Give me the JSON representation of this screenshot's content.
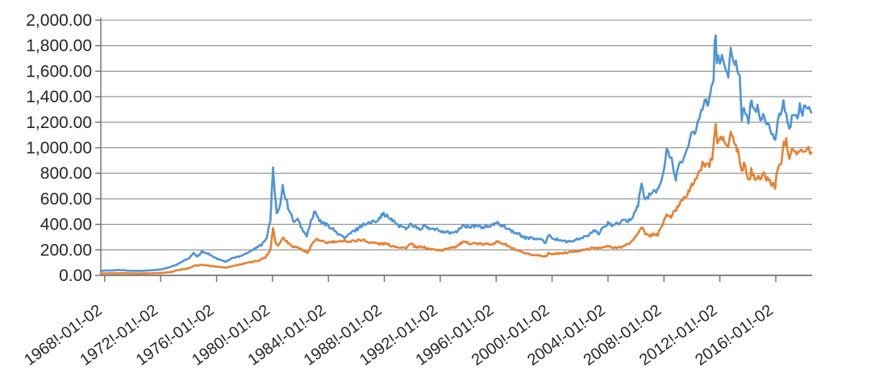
{
  "chart_data": {
    "type": "line",
    "title": "",
    "legend": "none",
    "grid": true,
    "x_axis": {
      "range": [
        1967.72,
        2018.6
      ],
      "tick_years": [
        1968,
        1972,
        1976,
        1980,
        1984,
        1988,
        1992,
        1996,
        2000,
        2004,
        2008,
        2012,
        2016
      ],
      "tick_labels": [
        "1968!-01!-02",
        "1972!-01!-02",
        "1976!-01!-02",
        "1980!-01!-02",
        "1984!-01!-02",
        "1988!-01!-02",
        "1992!-01!-02",
        "1996!-01!-02",
        "2000!-01!-02",
        "2004!-01!-02",
        "2008!-01!-02",
        "2012!-01!-02",
        "2016!-01!-02"
      ]
    },
    "y_axis": {
      "range": [
        0,
        2000
      ],
      "tick_values": [
        0,
        200,
        400,
        600,
        800,
        1000,
        1200,
        1400,
        1600,
        1800,
        2000
      ],
      "tick_labels": [
        "0.00",
        "200.00",
        "400.00",
        "600.00",
        "800.00",
        "1,000.00",
        "1,200.00",
        "1,400.00",
        "1,600.00",
        "1,800.00",
        "2,000.00"
      ]
    },
    "colors": {
      "grid": "#8a8a8a",
      "axis": "#6e6e6e",
      "text": "#262626",
      "background": "#ffffff"
    },
    "series": [
      {
        "name": "series-1-blue",
        "color": "#4E94D8",
        "points": [
          [
            1967.72,
            35
          ],
          [
            1968.4,
            39
          ],
          [
            1969.1,
            42
          ],
          [
            1969.8,
            36
          ],
          [
            1970.6,
            36
          ],
          [
            1971.4,
            40
          ],
          [
            1972,
            46
          ],
          [
            1972.6,
            62
          ],
          [
            1973.2,
            85
          ],
          [
            1973.7,
            120
          ],
          [
            1974,
            130
          ],
          [
            1974.35,
            172
          ],
          [
            1974.65,
            148
          ],
          [
            1974.95,
            186
          ],
          [
            1975.5,
            166
          ],
          [
            1976,
            132
          ],
          [
            1976.65,
            106
          ],
          [
            1977.1,
            135
          ],
          [
            1977.6,
            148
          ],
          [
            1978.2,
            178
          ],
          [
            1978.8,
            212
          ],
          [
            1979.2,
            240
          ],
          [
            1979.6,
            300
          ],
          [
            1979.85,
            430
          ],
          [
            1980.04,
            850
          ],
          [
            1980.16,
            630
          ],
          [
            1980.3,
            490
          ],
          [
            1980.55,
            560
          ],
          [
            1980.73,
            700
          ],
          [
            1980.95,
            610
          ],
          [
            1981.2,
            505
          ],
          [
            1981.55,
            420
          ],
          [
            1981.8,
            432
          ],
          [
            1982.1,
            370
          ],
          [
            1982.45,
            302
          ],
          [
            1982.75,
            425
          ],
          [
            1983.05,
            500
          ],
          [
            1983.35,
            425
          ],
          [
            1983.7,
            405
          ],
          [
            1984.1,
            383
          ],
          [
            1984.5,
            342
          ],
          [
            1984.9,
            312
          ],
          [
            1985.15,
            292
          ],
          [
            1985.6,
            330
          ],
          [
            1986,
            360
          ],
          [
            1986.5,
            400
          ],
          [
            1986.9,
            410
          ],
          [
            1987.3,
            422
          ],
          [
            1987.65,
            455
          ],
          [
            1987.95,
            482
          ],
          [
            1988.35,
            448
          ],
          [
            1988.75,
            414
          ],
          [
            1989.15,
            385
          ],
          [
            1989.55,
            368
          ],
          [
            1989.9,
            405
          ],
          [
            1990.25,
            380
          ],
          [
            1990.55,
            352
          ],
          [
            1990.8,
            388
          ],
          [
            1991.2,
            365
          ],
          [
            1991.7,
            357
          ],
          [
            1992.2,
            345
          ],
          [
            1992.7,
            335
          ],
          [
            1993.1,
            335
          ],
          [
            1993.6,
            388
          ],
          [
            1994.1,
            378
          ],
          [
            1994.6,
            386
          ],
          [
            1995.1,
            379
          ],
          [
            1995.6,
            386
          ],
          [
            1996.1,
            408
          ],
          [
            1996.6,
            384
          ],
          [
            1997.1,
            348
          ],
          [
            1997.6,
            322
          ],
          [
            1998.1,
            294
          ],
          [
            1998.6,
            290
          ],
          [
            1999.1,
            283
          ],
          [
            1999.55,
            256
          ],
          [
            1999.75,
            322
          ],
          [
            2000.1,
            288
          ],
          [
            2000.6,
            276
          ],
          [
            2001.1,
            262
          ],
          [
            2001.6,
            272
          ],
          [
            2002.1,
            292
          ],
          [
            2002.6,
            312
          ],
          [
            2003,
            347
          ],
          [
            2003.35,
            332
          ],
          [
            2003.7,
            372
          ],
          [
            2004,
            412
          ],
          [
            2004.35,
            392
          ],
          [
            2004.75,
            408
          ],
          [
            2005.1,
            424
          ],
          [
            2005.5,
            428
          ],
          [
            2005.85,
            478
          ],
          [
            2006.15,
            555
          ],
          [
            2006.4,
            718
          ],
          [
            2006.65,
            582
          ],
          [
            2006.95,
            632
          ],
          [
            2007.3,
            655
          ],
          [
            2007.6,
            668
          ],
          [
            2007.8,
            735
          ],
          [
            2008,
            855
          ],
          [
            2008.2,
            1005
          ],
          [
            2008.4,
            905
          ],
          [
            2008.55,
            930
          ],
          [
            2008.85,
            730
          ],
          [
            2009,
            855
          ],
          [
            2009.25,
            905
          ],
          [
            2009.5,
            930
          ],
          [
            2009.75,
            995
          ],
          [
            2009.95,
            1120
          ],
          [
            2010.2,
            1110
          ],
          [
            2010.45,
            1215
          ],
          [
            2010.75,
            1320
          ],
          [
            2011,
            1395
          ],
          [
            2011.15,
            1330
          ],
          [
            2011.4,
            1490
          ],
          [
            2011.55,
            1520
          ],
          [
            2011.63,
            1820
          ],
          [
            2011.7,
            1898
          ],
          [
            2011.78,
            1640
          ],
          [
            2011.88,
            1720
          ],
          [
            2012,
            1655
          ],
          [
            2012.15,
            1720
          ],
          [
            2012.35,
            1640
          ],
          [
            2012.6,
            1575
          ],
          [
            2012.78,
            1780
          ],
          [
            2012.95,
            1690
          ],
          [
            2013.15,
            1660
          ],
          [
            2013.3,
            1590
          ],
          [
            2013.42,
            1550
          ],
          [
            2013.5,
            1360
          ],
          [
            2013.57,
            1230
          ],
          [
            2013.72,
            1320
          ],
          [
            2013.9,
            1260
          ],
          [
            2014.05,
            1205
          ],
          [
            2014.2,
            1375
          ],
          [
            2014.5,
            1290
          ],
          [
            2014.7,
            1315
          ],
          [
            2014.9,
            1195
          ],
          [
            2015.1,
            1280
          ],
          [
            2015.35,
            1185
          ],
          [
            2015.6,
            1165
          ],
          [
            2015.8,
            1095
          ],
          [
            2015.97,
            1055
          ],
          [
            2016.15,
            1235
          ],
          [
            2016.35,
            1270
          ],
          [
            2016.55,
            1365
          ],
          [
            2016.75,
            1255
          ],
          [
            2016.97,
            1130
          ],
          [
            2017.15,
            1245
          ],
          [
            2017.4,
            1255
          ],
          [
            2017.55,
            1225
          ],
          [
            2017.72,
            1345
          ],
          [
            2017.92,
            1270
          ],
          [
            2018.1,
            1340
          ],
          [
            2018.3,
            1320
          ],
          [
            2018.45,
            1295
          ],
          [
            2018.55,
            1275
          ]
        ]
      },
      {
        "name": "series-2-orange",
        "color": "#E8802E",
        "points": [
          [
            1967.72,
            15
          ],
          [
            1968.6,
            16
          ],
          [
            1969.5,
            17
          ],
          [
            1970.4,
            15
          ],
          [
            1971.3,
            16
          ],
          [
            1972.1,
            20
          ],
          [
            1972.7,
            25
          ],
          [
            1973.3,
            42
          ],
          [
            1973.8,
            52
          ],
          [
            1974.1,
            58
          ],
          [
            1974.45,
            76
          ],
          [
            1975,
            83
          ],
          [
            1975.55,
            73
          ],
          [
            1976.1,
            68
          ],
          [
            1976.65,
            61
          ],
          [
            1977.2,
            74
          ],
          [
            1977.8,
            89
          ],
          [
            1978.4,
            102
          ],
          [
            1979,
            116
          ],
          [
            1979.5,
            142
          ],
          [
            1979.85,
            200
          ],
          [
            1980.04,
            375
          ],
          [
            1980.2,
            268
          ],
          [
            1980.4,
            232
          ],
          [
            1980.6,
            272
          ],
          [
            1980.8,
            298
          ],
          [
            1981.1,
            256
          ],
          [
            1981.5,
            226
          ],
          [
            1981.9,
            216
          ],
          [
            1982.2,
            196
          ],
          [
            1982.5,
            176
          ],
          [
            1982.8,
            242
          ],
          [
            1983.1,
            282
          ],
          [
            1983.5,
            266
          ],
          [
            1983.9,
            256
          ],
          [
            1984.3,
            262
          ],
          [
            1984.7,
            258
          ],
          [
            1985.1,
            278
          ],
          [
            1985.5,
            262
          ],
          [
            1985.9,
            272
          ],
          [
            1986.4,
            280
          ],
          [
            1986.8,
            262
          ],
          [
            1987.25,
            256
          ],
          [
            1987.65,
            246
          ],
          [
            1988.05,
            249
          ],
          [
            1988.5,
            232
          ],
          [
            1989,
            223
          ],
          [
            1989.5,
            213
          ],
          [
            1989.9,
            248
          ],
          [
            1990.3,
            216
          ],
          [
            1990.7,
            226
          ],
          [
            1991.2,
            206
          ],
          [
            1991.7,
            201
          ],
          [
            1992.2,
            196
          ],
          [
            1992.7,
            221
          ],
          [
            1993.1,
            223
          ],
          [
            1993.6,
            259
          ],
          [
            1994.1,
            253
          ],
          [
            1994.6,
            249
          ],
          [
            1995.1,
            243
          ],
          [
            1995.6,
            246
          ],
          [
            1996.1,
            263
          ],
          [
            1996.6,
            246
          ],
          [
            1997.1,
            213
          ],
          [
            1997.6,
            191
          ],
          [
            1998.1,
            168
          ],
          [
            1998.6,
            160
          ],
          [
            1999.1,
            156
          ],
          [
            1999.55,
            150
          ],
          [
            1999.75,
            172
          ],
          [
            2000.1,
            168
          ],
          [
            2000.6,
            172
          ],
          [
            2001.1,
            178
          ],
          [
            2001.6,
            188
          ],
          [
            2002.1,
            196
          ],
          [
            2002.6,
            206
          ],
          [
            2003.1,
            218
          ],
          [
            2003.5,
            214
          ],
          [
            2004,
            229
          ],
          [
            2004.4,
            213
          ],
          [
            2004.8,
            223
          ],
          [
            2005.2,
            229
          ],
          [
            2005.65,
            262
          ],
          [
            2006,
            305
          ],
          [
            2006.4,
            385
          ],
          [
            2006.7,
            316
          ],
          [
            2007,
            312
          ],
          [
            2007.3,
            325
          ],
          [
            2007.55,
            318
          ],
          [
            2007.8,
            368
          ],
          [
            2008,
            432
          ],
          [
            2008.2,
            472
          ],
          [
            2008.5,
            458
          ],
          [
            2008.8,
            502
          ],
          [
            2009.1,
            560
          ],
          [
            2009.35,
            605
          ],
          [
            2009.6,
            632
          ],
          [
            2009.9,
            672
          ],
          [
            2010.15,
            742
          ],
          [
            2010.5,
            792
          ],
          [
            2010.75,
            866
          ],
          [
            2011,
            882
          ],
          [
            2011.25,
            858
          ],
          [
            2011.45,
            922
          ],
          [
            2011.62,
            1095
          ],
          [
            2011.7,
            1178
          ],
          [
            2011.82,
            1035
          ],
          [
            2011.95,
            1062
          ],
          [
            2012.15,
            1082
          ],
          [
            2012.4,
            1032
          ],
          [
            2012.6,
            1002
          ],
          [
            2012.78,
            1122
          ],
          [
            2012.95,
            1072
          ],
          [
            2013.15,
            1005
          ],
          [
            2013.3,
            962
          ],
          [
            2013.45,
            892
          ],
          [
            2013.57,
            798
          ],
          [
            2013.72,
            865
          ],
          [
            2013.92,
            808
          ],
          [
            2014.1,
            732
          ],
          [
            2014.25,
            815
          ],
          [
            2014.5,
            772
          ],
          [
            2014.75,
            778
          ],
          [
            2014.95,
            752
          ],
          [
            2015.15,
            788
          ],
          [
            2015.4,
            758
          ],
          [
            2015.65,
            722
          ],
          [
            2015.95,
            702
          ],
          [
            2016.15,
            832
          ],
          [
            2016.4,
            895
          ],
          [
            2016.57,
            1035
          ],
          [
            2016.75,
            1052
          ],
          [
            2016.97,
            932
          ],
          [
            2017.15,
            998
          ],
          [
            2017.4,
            982
          ],
          [
            2017.6,
            962
          ],
          [
            2017.78,
            992
          ],
          [
            2017.95,
            952
          ],
          [
            2018.15,
            972
          ],
          [
            2018.35,
            988
          ],
          [
            2018.55,
            962
          ]
        ]
      }
    ]
  }
}
